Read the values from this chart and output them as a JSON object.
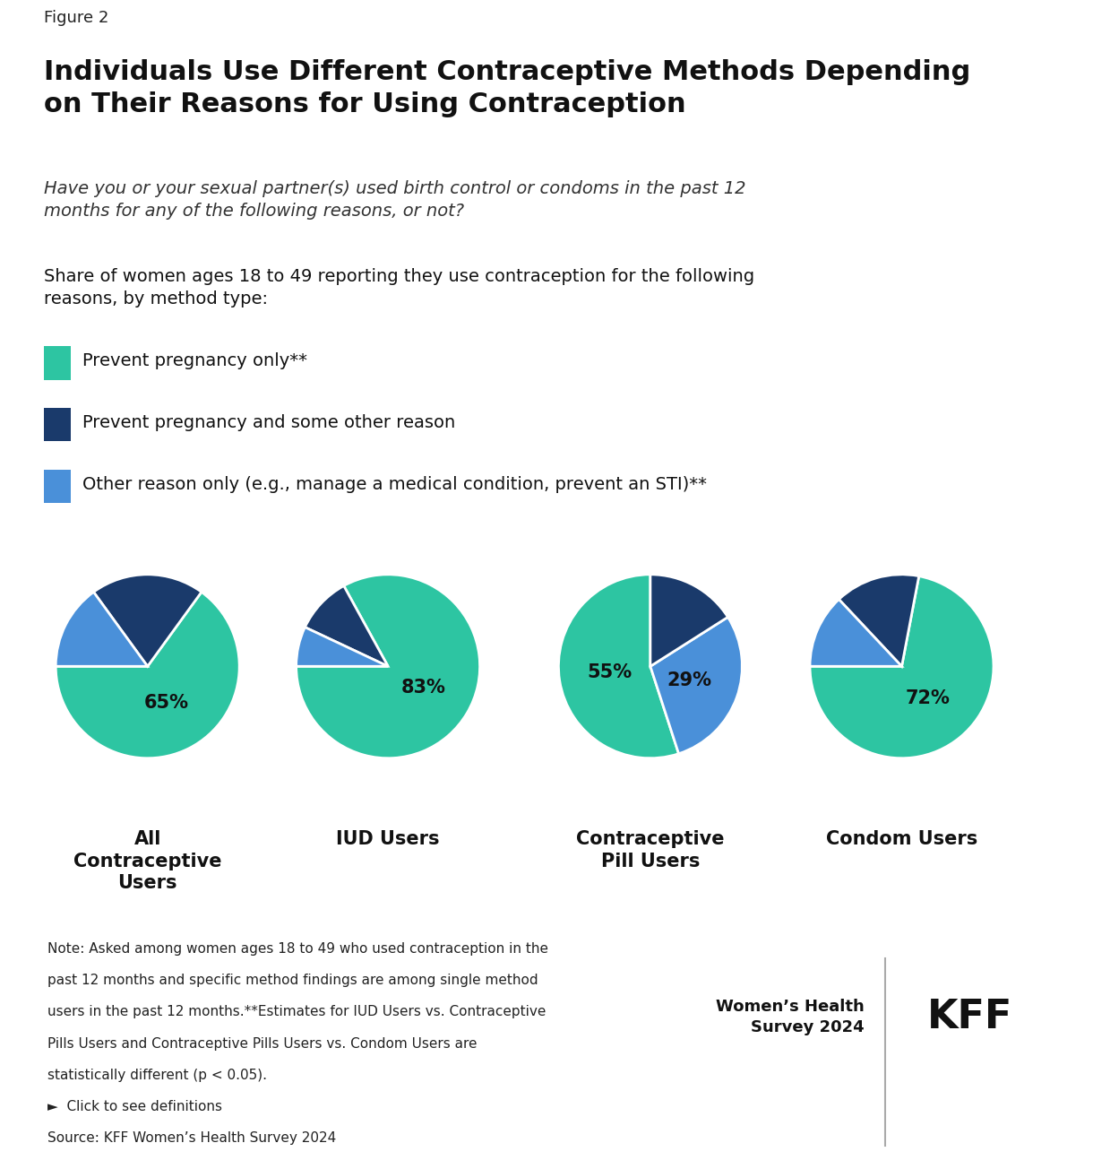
{
  "figure_label": "Figure 2",
  "title": "Individuals Use Different Contraceptive Methods Depending\non Their Reasons for Using Contraception",
  "subtitle": "Have you or your sexual partner(s) used birth control or condoms in the past 12\nmonths for any of the following reasons, or not?",
  "description": "Share of women ages 18 to 49 reporting they use contraception for the following\nreasons, by method type:",
  "legend_labels": [
    "Prevent pregnancy only**",
    "Prevent pregnancy and some other reason",
    "Other reason only (e.g., manage a medical condition, prevent an STI)**"
  ],
  "colors": {
    "green": "#2DC5A2",
    "dark_blue": "#1A3A6B",
    "light_blue": "#4A90D9"
  },
  "charts": [
    {
      "title": "All\nContraceptive\nUsers",
      "values": [
        65,
        20,
        15
      ],
      "label": "65%",
      "label_slice": 0
    },
    {
      "title": "IUD Users",
      "values": [
        83,
        10,
        7
      ],
      "label": "83%",
      "label_slice": 0
    },
    {
      "title": "Contraceptive\nPill Users",
      "values": [
        55,
        16,
        29
      ],
      "label_slice": 0,
      "extra_label_slice": 2,
      "label": "55%",
      "extra_label": "29%"
    },
    {
      "title": "Condom Users",
      "values": [
        72,
        15,
        13
      ],
      "label": "72%",
      "label_slice": 0
    }
  ],
  "note": "Note: Asked among women ages 18 to 49 who used contraception in the\npast 12 months and specific method findings are among single method\nusers in the past 12 months.**Estimates for IUD Users vs. Contraceptive\nPills Users and Contraceptive Pills Users vs. Condom Users are\nstatistically different (p < 0.05).\n►  Click to see definitions\nSource: KFF Women’s Health Survey 2024",
  "kff_label": "Women’s Health\nSurvey 2024",
  "background_color": "#FFFFFF"
}
